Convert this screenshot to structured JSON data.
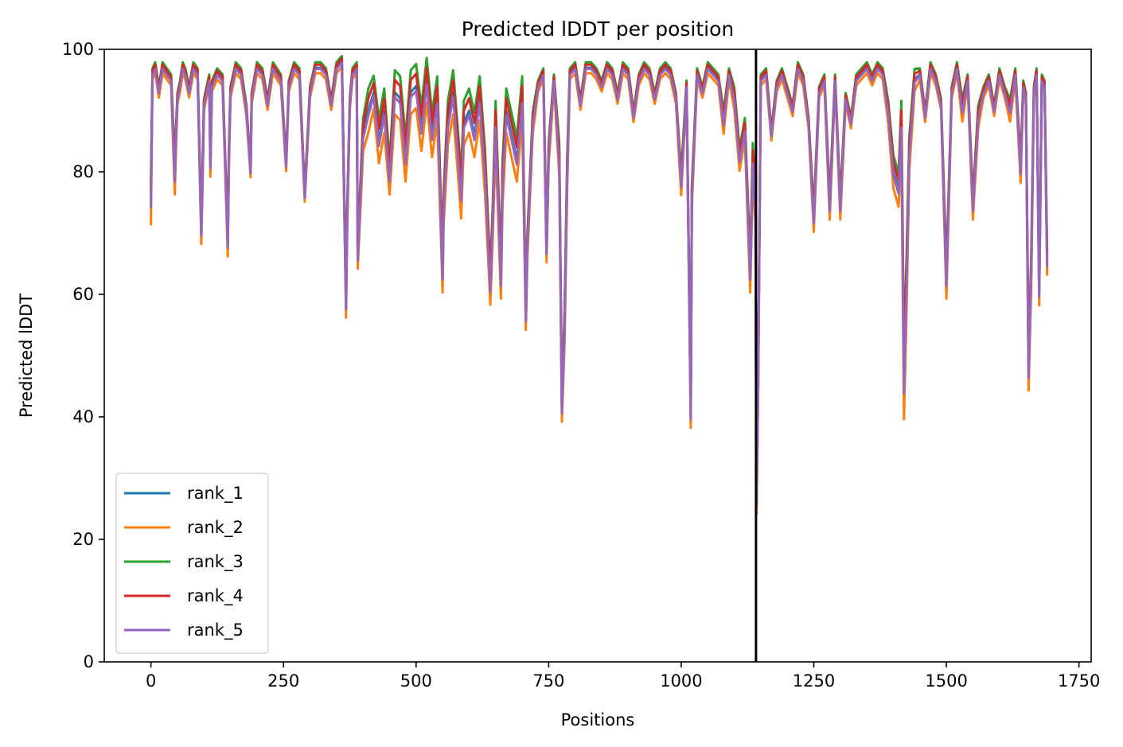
{
  "chart_data": {
    "type": "line",
    "title": "Predicted lDDT per position",
    "xlabel": "Positions",
    "ylabel": "Predicted lDDT",
    "xlim": [
      -88,
      1773
    ],
    "ylim": [
      0,
      100
    ],
    "xticks": [
      0,
      250,
      500,
      750,
      1000,
      1250,
      1500,
      1750
    ],
    "yticks": [
      0,
      20,
      40,
      60,
      80,
      100
    ],
    "grid": false,
    "legend_position": "lower-left",
    "chain_break": 1141,
    "colors": [
      "#1f77b4",
      "#ff7f0e",
      "#2ca02c",
      "#d62728",
      "#9467bd"
    ],
    "base_profile": {
      "x": [
        0,
        3,
        8,
        15,
        22,
        30,
        38,
        45,
        47,
        50,
        55,
        60,
        65,
        72,
        80,
        88,
        95,
        97,
        100,
        110,
        112,
        115,
        125,
        135,
        145,
        147,
        150,
        160,
        170,
        180,
        188,
        190,
        200,
        210,
        220,
        230,
        245,
        255,
        260,
        270,
        280,
        288,
        290,
        300,
        310,
        320,
        330,
        340,
        350,
        360,
        368,
        370,
        375,
        380,
        388,
        390,
        400,
        410,
        420,
        430,
        440,
        450,
        460,
        470,
        480,
        490,
        500,
        510,
        520,
        530,
        540,
        550,
        552,
        560,
        570,
        580,
        585,
        590,
        600,
        610,
        620,
        630,
        640,
        645,
        650,
        660,
        663,
        670,
        680,
        690,
        700,
        707,
        710,
        720,
        730,
        740,
        746,
        750,
        760,
        770,
        775,
        780,
        785,
        790,
        800,
        810,
        820,
        830,
        840,
        850,
        860,
        870,
        880,
        890,
        900,
        910,
        920,
        930,
        940,
        950,
        960,
        970,
        980,
        990,
        1000,
        1010,
        1018,
        1020,
        1030,
        1040,
        1050,
        1060,
        1070,
        1080,
        1090,
        1100,
        1110,
        1120,
        1130,
        1135,
        1140,
        1142,
        1145,
        1150,
        1160,
        1170,
        1180,
        1190,
        1200,
        1210,
        1220,
        1230,
        1240,
        1250,
        1260,
        1270,
        1280,
        1290,
        1300,
        1310,
        1320,
        1330,
        1340,
        1350,
        1360,
        1370,
        1380,
        1390,
        1400,
        1410,
        1415,
        1420,
        1425,
        1430,
        1440,
        1450,
        1460,
        1470,
        1480,
        1490,
        1500,
        1510,
        1520,
        1530,
        1540,
        1550,
        1560,
        1570,
        1580,
        1590,
        1600,
        1610,
        1620,
        1630,
        1640,
        1645,
        1650,
        1655,
        1660,
        1665,
        1670,
        1675,
        1680,
        1685,
        1690
      ],
      "y": [
        75,
        96,
        97,
        93,
        97,
        96,
        95,
        79,
        85,
        92,
        94,
        97,
        96,
        93,
        97,
        96,
        70,
        78,
        91,
        95,
        81,
        94,
        96,
        95,
        68,
        82,
        93,
        97,
        96,
        90,
        80,
        92,
        97,
        96,
        91,
        97,
        95,
        81,
        94,
        97,
        96,
        80,
        76,
        93,
        97,
        97,
        96,
        91,
        97,
        98,
        58,
        72,
        91,
        96,
        97,
        66,
        86,
        90,
        93,
        85,
        90,
        79,
        93,
        92,
        82,
        93,
        94,
        87,
        95,
        86,
        92,
        63,
        74,
        88,
        93,
        82,
        76,
        88,
        90,
        86,
        92,
        80,
        61,
        73,
        88,
        62,
        78,
        90,
        86,
        82,
        92,
        56,
        68,
        88,
        94,
        96,
        67,
        83,
        95,
        82,
        41,
        55,
        80,
        96,
        97,
        91,
        97,
        97,
        96,
        94,
        97,
        96,
        92,
        97,
        96,
        89,
        95,
        97,
        96,
        92,
        96,
        97,
        96,
        92,
        78,
        94,
        40,
        76,
        96,
        93,
        97,
        96,
        95,
        88,
        96,
        92,
        82,
        87,
        63,
        82,
        74,
        26,
        45,
        95,
        96,
        86,
        94,
        96,
        93,
        90,
        97,
        95,
        88,
        72,
        93,
        95,
        74,
        95,
        74,
        92,
        88,
        95,
        96,
        97,
        95,
        97,
        96,
        90,
        80,
        77,
        88,
        45,
        62,
        83,
        95,
        96,
        89,
        97,
        95,
        91,
        62,
        93,
        97,
        90,
        95,
        74,
        89,
        93,
        95,
        90,
        96,
        93,
        90,
        96,
        80,
        94,
        92,
        47,
        64,
        93,
        96,
        60,
        95,
        94,
        65
      ],
      "spread": [
        4,
        1,
        1,
        1,
        1,
        1,
        1,
        3,
        2,
        1,
        1,
        1,
        1,
        1,
        1,
        1,
        2,
        2,
        1,
        1,
        2,
        1,
        1,
        1,
        2,
        2,
        1,
        1,
        1,
        1,
        1,
        1,
        1,
        1,
        1,
        1,
        1,
        1,
        1,
        1,
        1,
        1,
        1,
        1,
        1,
        1,
        1,
        1,
        1,
        1,
        2,
        2,
        1,
        1,
        1,
        2,
        3,
        4,
        3,
        4,
        4,
        3,
        4,
        4,
        4,
        4,
        4,
        4,
        4,
        4,
        4,
        3,
        3,
        4,
        4,
        4,
        4,
        4,
        4,
        4,
        4,
        4,
        3,
        3,
        4,
        3,
        4,
        4,
        4,
        4,
        4,
        2,
        2,
        2,
        1,
        1,
        2,
        2,
        1,
        3,
        2,
        3,
        3,
        1,
        1,
        1,
        1,
        1,
        1,
        1,
        1,
        1,
        1,
        1,
        1,
        1,
        1,
        1,
        1,
        1,
        1,
        1,
        1,
        1,
        2,
        1,
        2,
        2,
        1,
        1,
        1,
        1,
        1,
        2,
        1,
        2,
        2,
        2,
        3,
        3,
        3,
        2,
        2,
        1,
        1,
        1,
        1,
        1,
        1,
        1,
        1,
        1,
        1,
        2,
        1,
        1,
        2,
        1,
        2,
        1,
        1,
        1,
        1,
        1,
        1,
        1,
        1,
        2,
        3,
        3,
        4,
        6,
        5,
        3,
        2,
        1,
        1,
        1,
        1,
        1,
        3,
        1,
        1,
        2,
        1,
        2,
        2,
        1,
        1,
        1,
        1,
        1,
        2,
        1,
        2,
        1,
        1,
        3,
        3,
        1,
        1,
        2,
        1,
        1,
        2
      ]
    },
    "series": [
      {
        "name": "rank_1",
        "offset_factor": 0.0
      },
      {
        "name": "rank_2",
        "offset_factor": -0.9
      },
      {
        "name": "rank_3",
        "offset_factor": 0.9
      },
      {
        "name": "rank_4",
        "offset_factor": 0.5
      },
      {
        "name": "rank_5",
        "offset_factor": -0.2
      }
    ]
  }
}
